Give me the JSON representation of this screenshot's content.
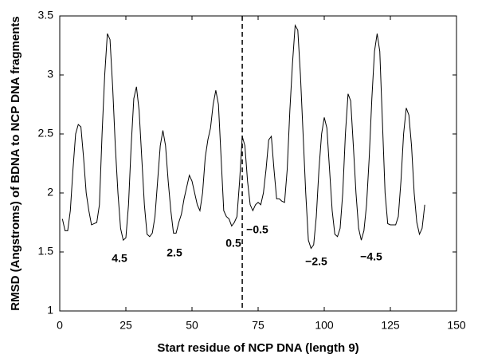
{
  "chart_data": {
    "type": "line",
    "xlabel": "Start residue of NCP DNA (length 9)",
    "ylabel": "RMSD (Angstroms) of BDNA to NCP DNA fragments",
    "xlim": [
      0,
      150
    ],
    "xticks": [
      0,
      25,
      50,
      75,
      100,
      125,
      150
    ],
    "ylim": [
      1,
      3.5
    ],
    "yticks": [
      1,
      1.5,
      2,
      2.5,
      3,
      3.5
    ],
    "vline": 69,
    "annotations": [
      "4.5",
      "2.5",
      "0.5",
      "−0.5",
      "−2.5",
      "−4.5"
    ],
    "x": [
      1,
      2,
      3,
      4,
      5,
      6,
      7,
      8,
      9,
      10,
      11,
      12,
      13,
      14,
      15,
      16,
      17,
      18,
      19,
      20,
      21,
      22,
      23,
      24,
      25,
      26,
      27,
      28,
      29,
      30,
      31,
      32,
      33,
      34,
      35,
      36,
      37,
      38,
      39,
      40,
      41,
      42,
      43,
      44,
      45,
      46,
      47,
      48,
      49,
      50,
      51,
      52,
      53,
      54,
      55,
      56,
      57,
      58,
      59,
      60,
      61,
      62,
      63,
      64,
      65,
      66,
      67,
      68,
      69,
      70,
      71,
      72,
      73,
      74,
      75,
      76,
      77,
      78,
      79,
      80,
      81,
      82,
      83,
      84,
      85,
      86,
      87,
      88,
      89,
      90,
      91,
      92,
      93,
      94,
      95,
      96,
      97,
      98,
      99,
      100,
      101,
      102,
      103,
      104,
      105,
      106,
      107,
      108,
      109,
      110,
      111,
      112,
      113,
      114,
      115,
      116,
      117,
      118,
      119,
      120,
      121,
      122,
      123,
      124,
      125,
      126,
      127,
      128,
      129,
      130,
      131,
      132,
      133,
      134,
      135,
      136,
      137,
      138
    ],
    "series": [
      {
        "name": "RMSD",
        "color": "#000000",
        "values": [
          1.78,
          1.68,
          1.68,
          1.85,
          2.2,
          2.5,
          2.58,
          2.56,
          2.3,
          2.0,
          1.85,
          1.73,
          1.74,
          1.75,
          1.9,
          2.5,
          3.0,
          3.35,
          3.3,
          2.9,
          2.4,
          2.0,
          1.7,
          1.6,
          1.62,
          1.9,
          2.4,
          2.8,
          2.9,
          2.7,
          2.3,
          1.9,
          1.65,
          1.63,
          1.66,
          1.8,
          2.1,
          2.4,
          2.53,
          2.4,
          2.1,
          1.85,
          1.66,
          1.66,
          1.75,
          1.82,
          1.95,
          2.05,
          2.15,
          2.1,
          2.0,
          1.9,
          1.85,
          2.0,
          2.3,
          2.45,
          2.55,
          2.75,
          2.87,
          2.75,
          2.3,
          1.85,
          1.8,
          1.78,
          1.72,
          1.75,
          1.8,
          2.1,
          2.48,
          2.4,
          2.1,
          1.9,
          1.85,
          1.9,
          1.92,
          1.9,
          2.0,
          2.2,
          2.45,
          2.48,
          2.2,
          1.95,
          1.95,
          1.93,
          1.92,
          2.2,
          2.7,
          3.1,
          3.42,
          3.38,
          3.0,
          2.5,
          2.0,
          1.6,
          1.53,
          1.56,
          1.8,
          2.2,
          2.5,
          2.64,
          2.55,
          2.2,
          1.85,
          1.65,
          1.63,
          1.7,
          2.0,
          2.5,
          2.84,
          2.78,
          2.4,
          2.0,
          1.7,
          1.6,
          1.68,
          1.9,
          2.3,
          2.8,
          3.2,
          3.35,
          3.2,
          2.6,
          2.0,
          1.74,
          1.73,
          1.73,
          1.73,
          1.8,
          2.1,
          2.5,
          2.72,
          2.66,
          2.4,
          2.0,
          1.75,
          1.65,
          1.7,
          1.9
        ]
      }
    ]
  }
}
